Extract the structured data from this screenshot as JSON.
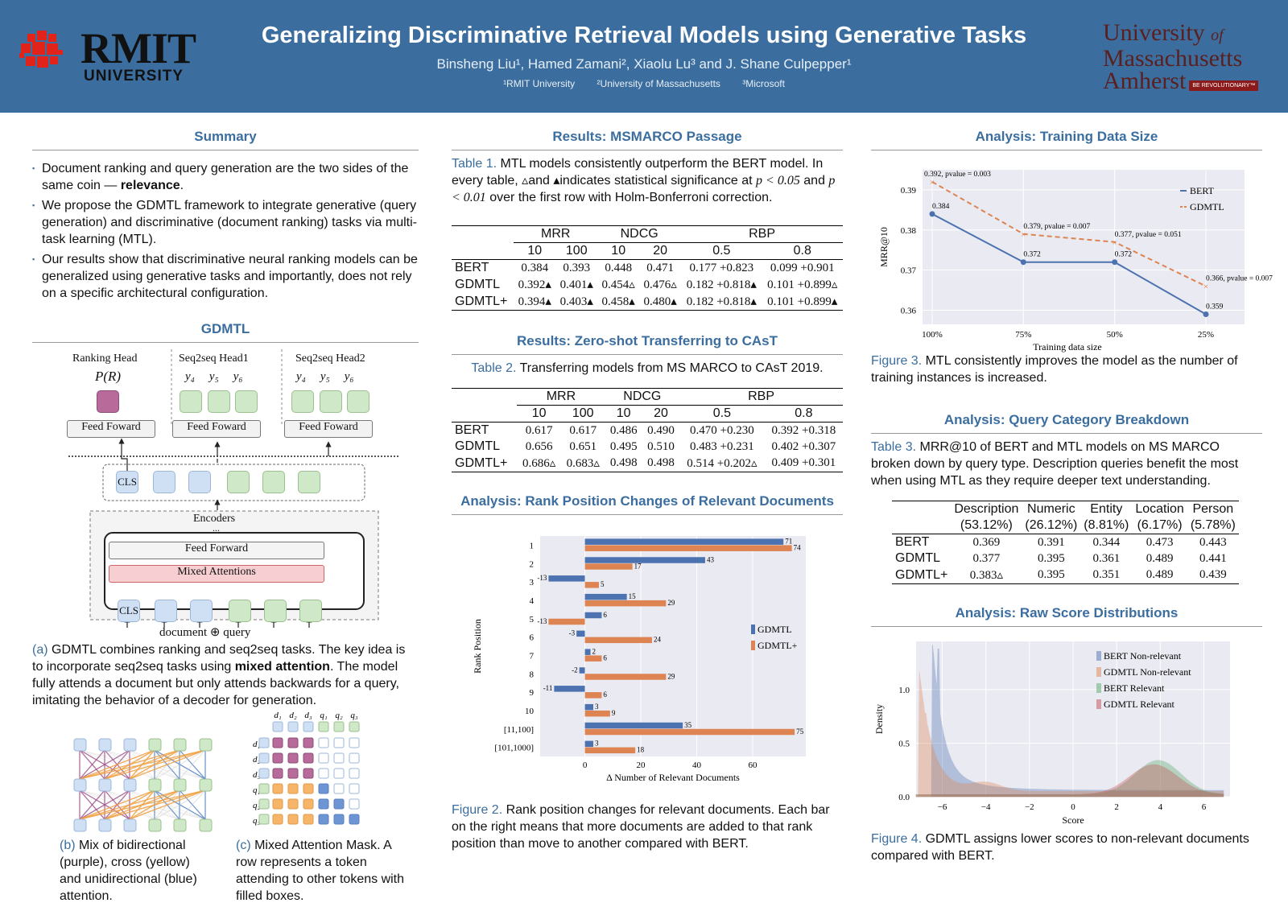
{
  "header": {
    "title": "Generalizing Discriminative Retrieval Models using Generative Tasks",
    "authors": "Binsheng Liu¹, Hamed Zamani², Xiaolu Lu³ and J. Shane Culpepper¹",
    "affil1": "¹RMIT University",
    "affil2": "²University of Massachusetts",
    "affil3": "³Microsoft",
    "rmit_name": "RMIT",
    "rmit_sub": "UNIVERSITY",
    "umass_l1": "University",
    "umass_of": "of",
    "umass_l2": "Massachusetts",
    "umass_l3": "Amherst",
    "umass_badge": "BE REVOLUTIONARY™"
  },
  "summary": {
    "heading": "Summary",
    "b1a": "Document ranking and query generation are the two sides of the same coin — ",
    "b1b": "relevance",
    "b1c": ".",
    "b2": "We propose the GDMTL framework to integrate generative (query generation) and discriminative (document ranking) tasks via multi-task learning (MTL).",
    "b3": "Our results show that discriminative neural ranking models can be generalized using generative tasks and importantly, does not rely on a specific architectural configuration."
  },
  "gdmtl": {
    "heading": "GDMTL",
    "rank_head": "Ranking Head",
    "pr": "P(R)",
    "s2s1": "Seq2seq Head1",
    "s2s2": "Seq2seq Head2",
    "y4": "y₄",
    "y5": "y₅",
    "y6": "y₆",
    "feed_foward": "Feed Foward",
    "cls": "CLS",
    "encoders": "Encoders",
    "dots": "...",
    "feed_forward": "Feed Forward",
    "mixed_att": "Mixed Attentions",
    "doc_query": "document ⊕ query",
    "cap_a_label": "(a)",
    "cap_a1": " GDMTL combines ranking and seq2seq tasks. The key idea is to incorporate seq2seq tasks using ",
    "cap_a_bold": "mixed attention",
    "cap_a2": ". The model fully attends a document but only attends backwards for a query, imitating the behavior of a decoder for generation.",
    "cap_b_label": "(b)",
    "cap_b": " Mix of bidirectional (purple), cross (yellow) and unidirectional (blue) attention.",
    "cap_c_label": "(c)",
    "cap_c": " Mixed Attention Mask. A row represents a token attending to other tokens with filled boxes.",
    "mask_cols": [
      "d₁",
      "d₂",
      "d₃",
      "q₁",
      "q₂",
      "q₃"
    ],
    "mask_rows": [
      "d₁",
      "d₂",
      "d₃",
      "q₁",
      "q₂",
      "q₃"
    ]
  },
  "results1": {
    "heading": "Results: MSMARCO Passage",
    "cap_label": "Table 1.",
    "cap1": " MTL models consistently outperform the BERT model. In every table, ▵and ▴indicates statistical significance at ",
    "p1": "p < 0.05",
    "cap2": " and ",
    "p2": "p < 0.01",
    "cap3": " over the first row with Holm-Bonferroni correction.",
    "groups": [
      "MRR",
      "NDCG",
      "RBP"
    ],
    "subs": [
      "10",
      "100",
      "10",
      "20",
      "0.5",
      "0.8"
    ],
    "rows": [
      {
        "name": "BERT",
        "v": [
          "0.384",
          "0.393",
          "0.448",
          "0.471",
          "0.177 +0.823",
          "0.099 +0.901"
        ]
      },
      {
        "name": "GDMTL",
        "v": [
          "0.392▴",
          "0.401▴",
          "0.454▵",
          "0.476▵",
          "0.182 +0.818▴",
          "0.101 +0.899▵"
        ]
      },
      {
        "name": "GDMTL+",
        "v": [
          "0.394▴",
          "0.403▴",
          "0.458▴",
          "0.480▴",
          "0.182 +0.818▴",
          "0.101 +0.899▴"
        ]
      }
    ]
  },
  "results2": {
    "heading": "Results: Zero-shot Transferring to CAsT",
    "cap_label": "Table 2.",
    "cap": " Transferring models from MS MARCO to CAsT 2019.",
    "groups": [
      "MRR",
      "NDCG",
      "RBP"
    ],
    "subs": [
      "10",
      "100",
      "10",
      "20",
      "0.5",
      "0.8"
    ],
    "rows": [
      {
        "name": "BERT",
        "v": [
          "0.617",
          "0.617",
          "0.486",
          "0.490",
          "0.470 +0.230",
          "0.392 +0.318"
        ]
      },
      {
        "name": "GDMTL",
        "v": [
          "0.656",
          "0.651",
          "0.495",
          "0.510",
          "0.483 +0.231",
          "0.402 +0.307"
        ]
      },
      {
        "name": "GDMTL+",
        "v": [
          "0.686▵",
          "0.683▵",
          "0.498",
          "0.498",
          "0.514 +0.202▵",
          "0.409 +0.301"
        ]
      }
    ]
  },
  "rank_analysis": {
    "heading": "Analysis: Rank Position Changes of Relevant Documents",
    "cap_label": "Figure 2.",
    "cap": " Rank position changes for relevant documents. Each bar on the right means that more documents are added to that rank position than move to another compared with BERT."
  },
  "train_analysis": {
    "heading": "Analysis: Training Data Size",
    "cap_label": "Figure 3.",
    "cap": " MTL consistently improves the model as the number of training instances is increased."
  },
  "category": {
    "heading": "Analysis: Query Category Breakdown",
    "cap_label": "Table 3.",
    "cap": " MRR@10 of BERT and MTL models on MS MARCO broken down by query type. Description queries benefit the most when using MTL as they require deeper text understanding.",
    "cols": [
      [
        "Description",
        "(53.12%)"
      ],
      [
        "Numeric",
        "(26.12%)"
      ],
      [
        "Entity",
        "(8.81%)"
      ],
      [
        "Location",
        "(6.17%)"
      ],
      [
        "Person",
        "(5.78%)"
      ]
    ],
    "rows": [
      {
        "name": "BERT",
        "v": [
          "0.369",
          "0.391",
          "0.344",
          "0.473",
          "0.443"
        ]
      },
      {
        "name": "GDMTL",
        "v": [
          "0.377",
          "0.395",
          "0.361",
          "0.489",
          "0.441"
        ]
      },
      {
        "name": "GDMTL+",
        "v": [
          "0.383▵",
          "0.395",
          "0.351",
          "0.489",
          "0.439"
        ]
      }
    ]
  },
  "raw_analysis": {
    "heading": "Analysis: Raw Score Distributions",
    "cap_label": "Figure 4.",
    "cap": " GDMTL assigns lower scores to non-relevant documents compared with BERT."
  },
  "chart_data": [
    {
      "type": "bar",
      "orientation": "horizontal",
      "categories": [
        "1",
        "2",
        "3",
        "4",
        "5",
        "6",
        "7",
        "8",
        "9",
        "10",
        "[11,100]",
        "[101,1000]"
      ],
      "series": [
        {
          "name": "GDMTL",
          "values": [
            71,
            43,
            -13,
            15,
            6,
            -3,
            2,
            -2,
            -11,
            3,
            35,
            3
          ],
          "color": "#4c72b0"
        },
        {
          "name": "GDMTL+",
          "values": [
            74,
            17,
            5,
            29,
            -13,
            24,
            6,
            29,
            6,
            9,
            75,
            18
          ],
          "color": "#dd8452"
        }
      ],
      "xlabel": "Δ Number of Relevant Documents",
      "ylabel": "Rank Position",
      "xticks": [
        0,
        20,
        40,
        60
      ],
      "xlim": [
        -16,
        79
      ],
      "legend": "right"
    },
    {
      "type": "line",
      "categories": [
        "100%",
        "75%",
        "50%",
        "25%"
      ],
      "series": [
        {
          "name": "BERT",
          "values": [
            0.384,
            0.372,
            0.372,
            0.359
          ],
          "labels": [
            "0.384",
            "0.372",
            "0.372",
            "0.359"
          ],
          "color": "#4c72b0"
        },
        {
          "name": "GDMTL",
          "values": [
            0.392,
            0.379,
            0.377,
            0.366
          ],
          "labels": [
            "0.392, pvalue = 0.003",
            "0.379, pvalue = 0.007",
            "0.377, pvalue = 0.051",
            "0.366, pvalue = 0.007"
          ],
          "color": "#dd8452"
        }
      ],
      "xlabel": "Training data size",
      "ylabel": "MRR@10",
      "yticks": [
        "0.36",
        "0.37",
        "0.38",
        "0.39"
      ],
      "ylim": [
        0.3565,
        0.395
      ],
      "legend": "top-right"
    },
    {
      "type": "area",
      "series": [
        {
          "name": "BERT Non-relevant",
          "color": "#4c72b0"
        },
        {
          "name": "GDMTL Non-relevant",
          "color": "#dd8452"
        },
        {
          "name": "BERT Relevant",
          "color": "#55a868"
        },
        {
          "name": "GDMTL Relevant",
          "color": "#c44e52"
        }
      ],
      "xlabel": "Score",
      "ylabel": "Density",
      "xticks": [
        "−6",
        "−4",
        "−2",
        "0",
        "2",
        "4",
        "6"
      ],
      "yticks": [
        "0.0",
        "0.5",
        "1.0"
      ],
      "xlim": [
        -7.2,
        7.2
      ],
      "ylim": [
        0,
        1.45
      ],
      "legend": "top-right"
    }
  ]
}
